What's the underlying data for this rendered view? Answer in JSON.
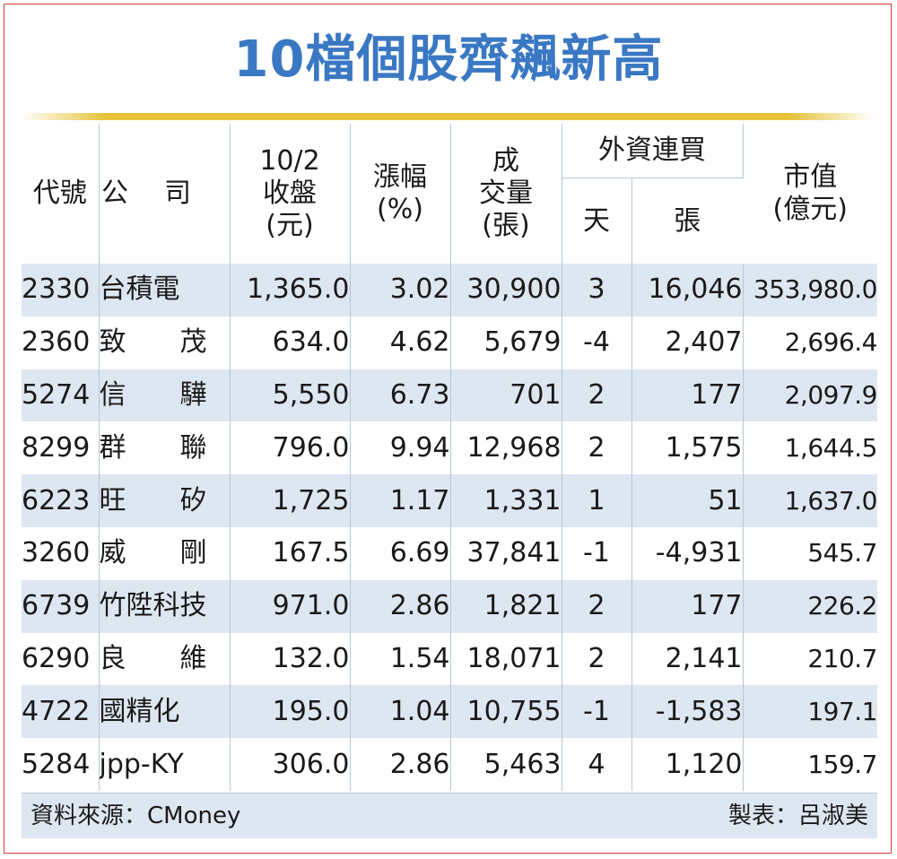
{
  "title": "10檔個股齊飆新高",
  "chart_data": {
    "type": "table",
    "headers": {
      "code": "代號",
      "company": "公司",
      "close_line1": "10/2",
      "close_line2": "收盤",
      "close_unit": "(元)",
      "change": "漲幅",
      "change_unit": "(%)",
      "volume_line1": "成",
      "volume_line2": "交量",
      "volume_unit": "(張)",
      "foreign_group": "外資連買",
      "foreign_days": "天",
      "foreign_lots": "張",
      "mcap": "市值",
      "mcap_unit": "(億元)"
    },
    "rows": [
      {
        "code": "2330",
        "company": "台積電",
        "close": "1,365.0",
        "change": "3.02",
        "volume": "30,900",
        "days": "3",
        "lots": "16,046",
        "mcap": "353,980.0"
      },
      {
        "code": "2360",
        "company": "致　　茂",
        "close": "634.0",
        "change": "4.62",
        "volume": "5,679",
        "days": "-4",
        "lots": "2,407",
        "mcap": "2,696.4"
      },
      {
        "code": "5274",
        "company": "信　　驊",
        "close": "5,550",
        "change": "6.73",
        "volume": "701",
        "days": "2",
        "lots": "177",
        "mcap": "2,097.9"
      },
      {
        "code": "8299",
        "company": "群　　聯",
        "close": "796.0",
        "change": "9.94",
        "volume": "12,968",
        "days": "2",
        "lots": "1,575",
        "mcap": "1,644.5"
      },
      {
        "code": "6223",
        "company": "旺　　矽",
        "close": "1,725",
        "change": "1.17",
        "volume": "1,331",
        "days": "1",
        "lots": "51",
        "mcap": "1,637.0"
      },
      {
        "code": "3260",
        "company": "威　　剛",
        "close": "167.5",
        "change": "6.69",
        "volume": "37,841",
        "days": "-1",
        "lots": "-4,931",
        "mcap": "545.7"
      },
      {
        "code": "6739",
        "company": "竹陞科技",
        "close": "971.0",
        "change": "2.86",
        "volume": "1,821",
        "days": "2",
        "lots": "177",
        "mcap": "226.2"
      },
      {
        "code": "6290",
        "company": "良　　維",
        "close": "132.0",
        "change": "1.54",
        "volume": "18,071",
        "days": "2",
        "lots": "2,141",
        "mcap": "210.7"
      },
      {
        "code": "4722",
        "company": "國精化",
        "close": "195.0",
        "change": "1.04",
        "volume": "10,755",
        "days": "-1",
        "lots": "-1,583",
        "mcap": "197.1"
      },
      {
        "code": "5284",
        "company": "jpp-KY",
        "close": "306.0",
        "change": "2.86",
        "volume": "5,463",
        "days": "4",
        "lots": "1,120",
        "mcap": "159.7"
      }
    ]
  },
  "footer": {
    "source": "資料來源：CMoney",
    "maker": "製表：呂淑美"
  }
}
